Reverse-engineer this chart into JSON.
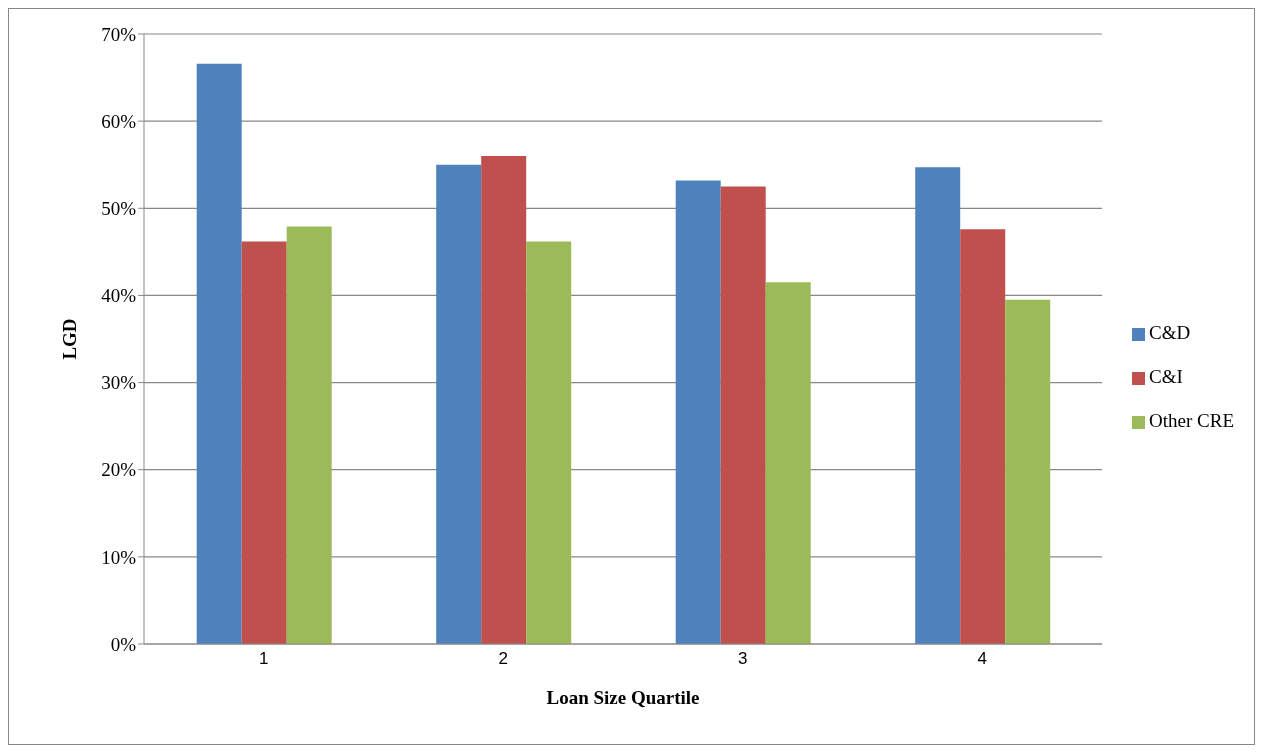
{
  "chart_data": {
    "type": "bar",
    "xlabel": "Loan  Size Quartile",
    "ylabel": "LGD",
    "categories": [
      "1",
      "2",
      "3",
      "4"
    ],
    "series": [
      {
        "name": "C&D",
        "color": "#4f81bd",
        "values": [
          66.6,
          55.0,
          53.2,
          54.7
        ]
      },
      {
        "name": "C&I",
        "color": "#c0504d",
        "values": [
          46.2,
          56.0,
          52.5,
          47.6
        ]
      },
      {
        "name": "Other CRE",
        "color": "#9bbb59",
        "values": [
          47.9,
          46.2,
          41.5,
          39.5
        ]
      }
    ],
    "ylim": [
      0,
      70
    ],
    "yticks": [
      {
        "value": 0,
        "label": "0%"
      },
      {
        "value": 10,
        "label": "10%"
      },
      {
        "value": 20,
        "label": "20%"
      },
      {
        "value": 30,
        "label": "30%"
      },
      {
        "value": 40,
        "label": "40%"
      },
      {
        "value": 50,
        "label": "50%"
      },
      {
        "value": 60,
        "label": "60%"
      },
      {
        "value": 70,
        "label": "70%"
      }
    ],
    "grid": "y",
    "legend": "right"
  }
}
